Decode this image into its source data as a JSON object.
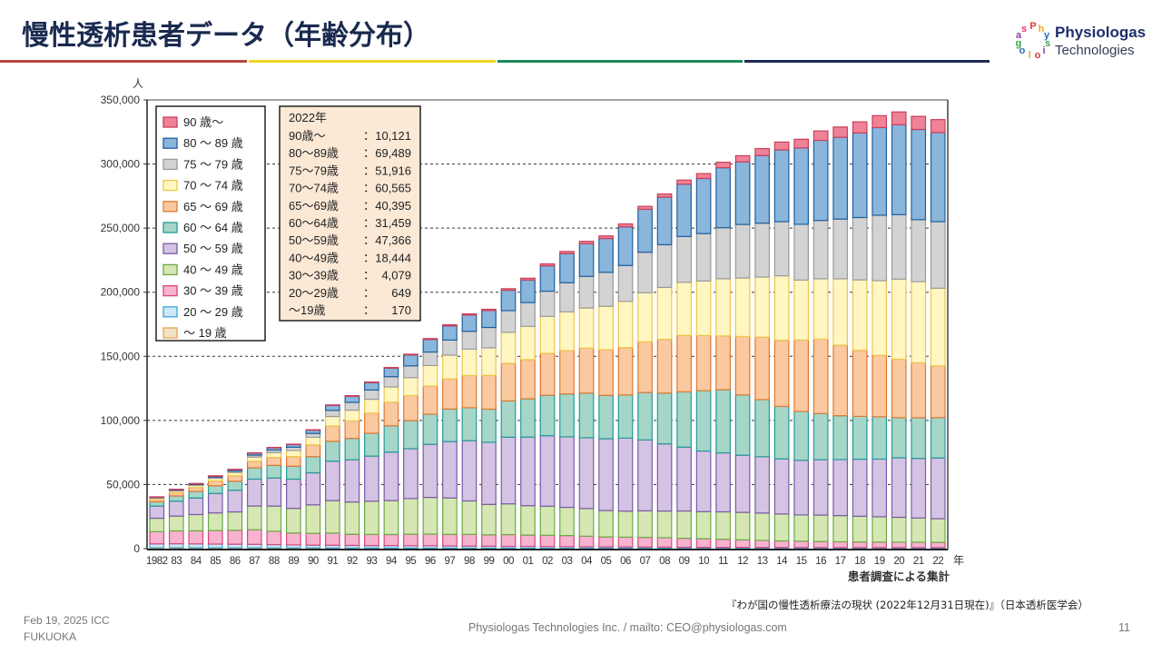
{
  "slide": {
    "title": "慢性透析患者データ（年齢分布）",
    "logo": {
      "name_line1": "Physiologas",
      "name_line2": "Technologies"
    },
    "footer": {
      "date_line1": "Feb 19, 2025 ICC",
      "date_line2": "FUKUOKA",
      "center": "Physiologas Technologies Inc.   /   mailto: CEO@physiologas.com",
      "page_number": "11"
    },
    "source": "『わが国の慢性透析療法の現状 (2022年12月31日現在)』（日本透析医学会）",
    "colors": {
      "rule_red": "#b5473f",
      "rule_yellow": "#f1d423",
      "rule_green": "#1c8a5a",
      "rule_navy": "#1e2a57",
      "title": "#1a2a4f"
    }
  },
  "chart_data": {
    "type": "bar",
    "stacked": true,
    "title": "",
    "ylabel": "人",
    "xlabel": "年",
    "x_note": "患者調査による集計",
    "ylim": [
      0,
      350000
    ],
    "yticks": [
      0,
      50000,
      100000,
      150000,
      200000,
      250000,
      300000,
      350000
    ],
    "ytick_labels": [
      "0",
      "50,000",
      "100,000",
      "150,000",
      "200,000",
      "250,000",
      "300,000",
      "350,000"
    ],
    "grid": "dashed horizontal",
    "legend_position": "top-left",
    "categories": [
      "1982",
      "83",
      "84",
      "85",
      "86",
      "87",
      "88",
      "89",
      "90",
      "91",
      "92",
      "93",
      "94",
      "95",
      "96",
      "97",
      "98",
      "99",
      "00",
      "01",
      "02",
      "03",
      "04",
      "05",
      "06",
      "07",
      "08",
      "09",
      "10",
      "11",
      "12",
      "13",
      "14",
      "15",
      "16",
      "17",
      "18",
      "19",
      "20",
      "21",
      "22"
    ],
    "series": [
      {
        "name": "～ 19 歳",
        "fill": "#f1e3c6",
        "stroke": "#e8a44c",
        "values": [
          700,
          700,
          700,
          650,
          650,
          650,
          600,
          600,
          550,
          550,
          500,
          500,
          500,
          450,
          450,
          400,
          400,
          400,
          350,
          350,
          300,
          300,
          300,
          280,
          260,
          250,
          240,
          230,
          220,
          210,
          200,
          200,
          190,
          190,
          180,
          180,
          180,
          170,
          170,
          170,
          170
        ]
      },
      {
        "name": "20 ～ 29 歳",
        "fill": "#cfe8f5",
        "stroke": "#3aa5d6",
        "values": [
          3000,
          3100,
          3000,
          2900,
          2800,
          2700,
          2500,
          2300,
          2200,
          2100,
          2000,
          1900,
          1900,
          1800,
          1800,
          1700,
          1600,
          1500,
          1400,
          1400,
          1300,
          1200,
          1100,
          1050,
          1000,
          950,
          900,
          850,
          820,
          800,
          780,
          760,
          740,
          720,
          700,
          690,
          680,
          670,
          660,
          655,
          649
        ]
      },
      {
        "name": "30 ～ 39 歳",
        "fill": "#f7b3cf",
        "stroke": "#d9457f",
        "values": [
          9500,
          10000,
          10200,
          10600,
          10900,
          11400,
          10500,
          9300,
          9200,
          9500,
          8700,
          8700,
          8600,
          9000,
          9100,
          9000,
          9100,
          8900,
          9200,
          8800,
          8800,
          8700,
          8300,
          7800,
          7700,
          7600,
          7400,
          7000,
          6700,
          6300,
          5900,
          5500,
          5100,
          4900,
          4700,
          4500,
          4400,
          4300,
          4200,
          4150,
          4079
        ]
      },
      {
        "name": "40 ～ 49 歳",
        "fill": "#d6e7b3",
        "stroke": "#6aab45",
        "values": [
          10500,
          11600,
          12700,
          13700,
          14300,
          18500,
          19600,
          19200,
          22200,
          25300,
          25200,
          25900,
          26500,
          27800,
          28600,
          28400,
          26100,
          23700,
          24000,
          23000,
          22700,
          22000,
          21600,
          20600,
          20300,
          20700,
          20800,
          21300,
          21100,
          21400,
          21400,
          21300,
          21000,
          20500,
          20600,
          20400,
          20000,
          19700,
          19400,
          18900,
          18444
        ]
      },
      {
        "name": "50 ～ 59 歳",
        "fill": "#d5c3e3",
        "stroke": "#7a5aa8",
        "values": [
          9500,
          11700,
          12900,
          15200,
          16900,
          21000,
          21900,
          22800,
          25000,
          30800,
          32900,
          35200,
          37800,
          38900,
          41400,
          44000,
          47000,
          48500,
          52000,
          53500,
          55000,
          55000,
          55200,
          56000,
          56900,
          55300,
          52400,
          49800,
          47300,
          46000,
          44600,
          43900,
          43000,
          42600,
          43200,
          43700,
          44500,
          45000,
          46400,
          46500,
          47366
        ]
      },
      {
        "name": "60 ～ 64 歳",
        "fill": "#a6d6c8",
        "stroke": "#229b9a",
        "values": [
          3300,
          4000,
          5100,
          6000,
          7000,
          8800,
          9800,
          10100,
          12600,
          15500,
          16700,
          17800,
          20500,
          21900,
          23500,
          25400,
          25700,
          25800,
          28300,
          29800,
          31500,
          33500,
          34800,
          33800,
          33700,
          37000,
          39600,
          43100,
          47100,
          49200,
          47000,
          44600,
          40900,
          38100,
          36000,
          34200,
          33400,
          33000,
          31300,
          31700,
          31459
        ]
      },
      {
        "name": "65 ～ 69 歳",
        "fill": "#fbc9a0",
        "stroke": "#e07830",
        "values": [
          1900,
          2500,
          3000,
          3700,
          4300,
          5100,
          6200,
          7500,
          9200,
          11900,
          13600,
          15700,
          18400,
          19600,
          21900,
          23400,
          25100,
          26300,
          29200,
          30500,
          32700,
          33800,
          35100,
          35600,
          37000,
          39500,
          41900,
          44000,
          43000,
          42000,
          45600,
          48700,
          51600,
          55700,
          58000,
          55000,
          51600,
          47900,
          45600,
          42900,
          40395
        ]
      },
      {
        "name": "70 ～ 74 歳",
        "fill": "#fff6c2",
        "stroke": "#eec64a",
        "values": [
          1000,
          1400,
          1700,
          2100,
          2500,
          3300,
          3800,
          4800,
          5900,
          7400,
          8400,
          10800,
          11900,
          13900,
          16100,
          18600,
          20600,
          21500,
          24300,
          26000,
          28800,
          30200,
          31300,
          33900,
          36000,
          38300,
          40500,
          41500,
          42500,
          44600,
          45600,
          46900,
          50300,
          46800,
          47100,
          51800,
          54900,
          58300,
          62500,
          63300,
          60565
        ]
      },
      {
        "name": "75 ～ 79 歳",
        "fill": "#d3d3d3",
        "stroke": "#9a9a9a",
        "values": [
          500,
          600,
          700,
          900,
          1200,
          1500,
          2000,
          2500,
          3000,
          4800,
          6100,
          7200,
          8000,
          9200,
          10500,
          11800,
          13900,
          15900,
          16900,
          18600,
          19700,
          22700,
          24700,
          26500,
          28000,
          31600,
          33300,
          35700,
          37000,
          39800,
          41800,
          42000,
          42200,
          43500,
          45500,
          46600,
          48600,
          51000,
          50300,
          48300,
          51916
        ]
      },
      {
        "name": "80 ～ 89 歳",
        "fill": "#8ab6dc",
        "stroke": "#1f5f9c",
        "values": [
          400,
          600,
          700,
          900,
          1200,
          1600,
          1800,
          2100,
          2600,
          3900,
          4800,
          5800,
          6700,
          8500,
          9800,
          11100,
          12700,
          13200,
          15900,
          17600,
          19800,
          22700,
          25400,
          26400,
          30200,
          33500,
          37100,
          40800,
          43000,
          46800,
          48800,
          52800,
          56000,
          59600,
          62500,
          63800,
          66000,
          68400,
          70100,
          70400,
          69489
        ]
      },
      {
        "name": "90 歳～",
        "fill": "#ef8296",
        "stroke": "#c93f5c",
        "values": [
          100,
          100,
          100,
          150,
          150,
          200,
          250,
          300,
          300,
          350,
          400,
          450,
          500,
          600,
          700,
          800,
          900,
          1000,
          1200,
          1400,
          1500,
          1700,
          1900,
          2000,
          2200,
          2300,
          2500,
          3200,
          3800,
          4300,
          4800,
          5400,
          6100,
          6700,
          7300,
          8000,
          8600,
          9300,
          10000,
          10200,
          10121
        ]
      }
    ],
    "annotation_box": {
      "title": "2022年",
      "rows": [
        {
          "label": "90歳～",
          "value": "10,121"
        },
        {
          "label": "80～89歳",
          "value": "69,489"
        },
        {
          "label": "75～79歳",
          "value": "51,916"
        },
        {
          "label": "70～74歳",
          "value": "60,565"
        },
        {
          "label": "65～69歳",
          "value": "40,395"
        },
        {
          "label": "60～64歳",
          "value": "31,459"
        },
        {
          "label": "50～59歳",
          "value": "47,366"
        },
        {
          "label": "40～49歳",
          "value": "18,444"
        },
        {
          "label": "30～39歳",
          "value": "4,079"
        },
        {
          "label": "20～29歳",
          "value": "649"
        },
        {
          "label": "～19歳",
          "value": "170"
        }
      ]
    }
  }
}
